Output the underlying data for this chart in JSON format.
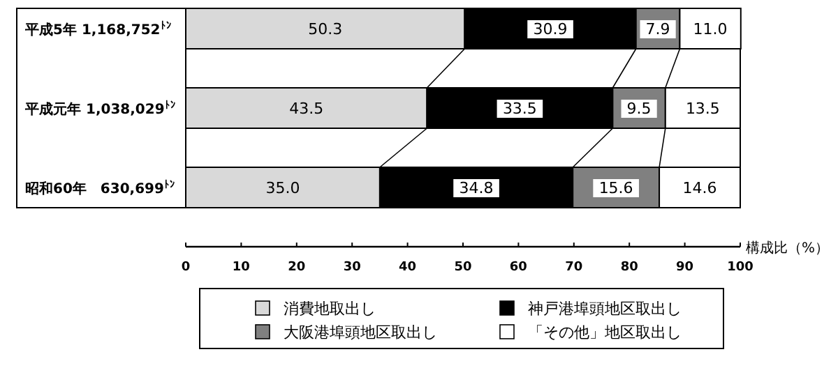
{
  "chart_data": {
    "type": "bar",
    "orientation": "horizontal",
    "stacked": true,
    "xlabel": "構成比（%）",
    "xlim": [
      0,
      100
    ],
    "xticks": [
      0,
      10,
      20,
      30,
      40,
      50,
      60,
      70,
      80,
      90,
      100
    ],
    "legend": "bottom",
    "categories": [
      "平成5年 1,168,752$^{ﾄﾝ}$",
      "平成元年 1,038,029$^{ﾄﾝ}$",
      "昭和60年　630,699$^{ﾄﾝ}$"
    ],
    "series": [
      {
        "name": "消費地取出し",
        "color": "#d9d9d9",
        "values": [
          50.3,
          43.5,
          35.0
        ],
        "value_labels": [
          "50.3",
          "43.5",
          "35.0"
        ]
      },
      {
        "name": "神戸港埠頭地区取出し",
        "color": "#000000",
        "values": [
          30.9,
          33.5,
          34.8
        ],
        "value_labels": [
          "30.9",
          "33.5",
          "34.8"
        ]
      },
      {
        "name": "大阪港埠頭地区取出し",
        "color": "#808080",
        "values": [
          7.9,
          9.5,
          15.6
        ],
        "value_labels": [
          "7.9",
          "9.5",
          "15.6"
        ]
      },
      {
        "name": "「その他」地区取出し",
        "color": "#ffffff",
        "values": [
          11.0,
          13.5,
          14.6
        ],
        "value_labels": [
          "11.0",
          "13.5",
          "14.6"
        ]
      }
    ]
  }
}
